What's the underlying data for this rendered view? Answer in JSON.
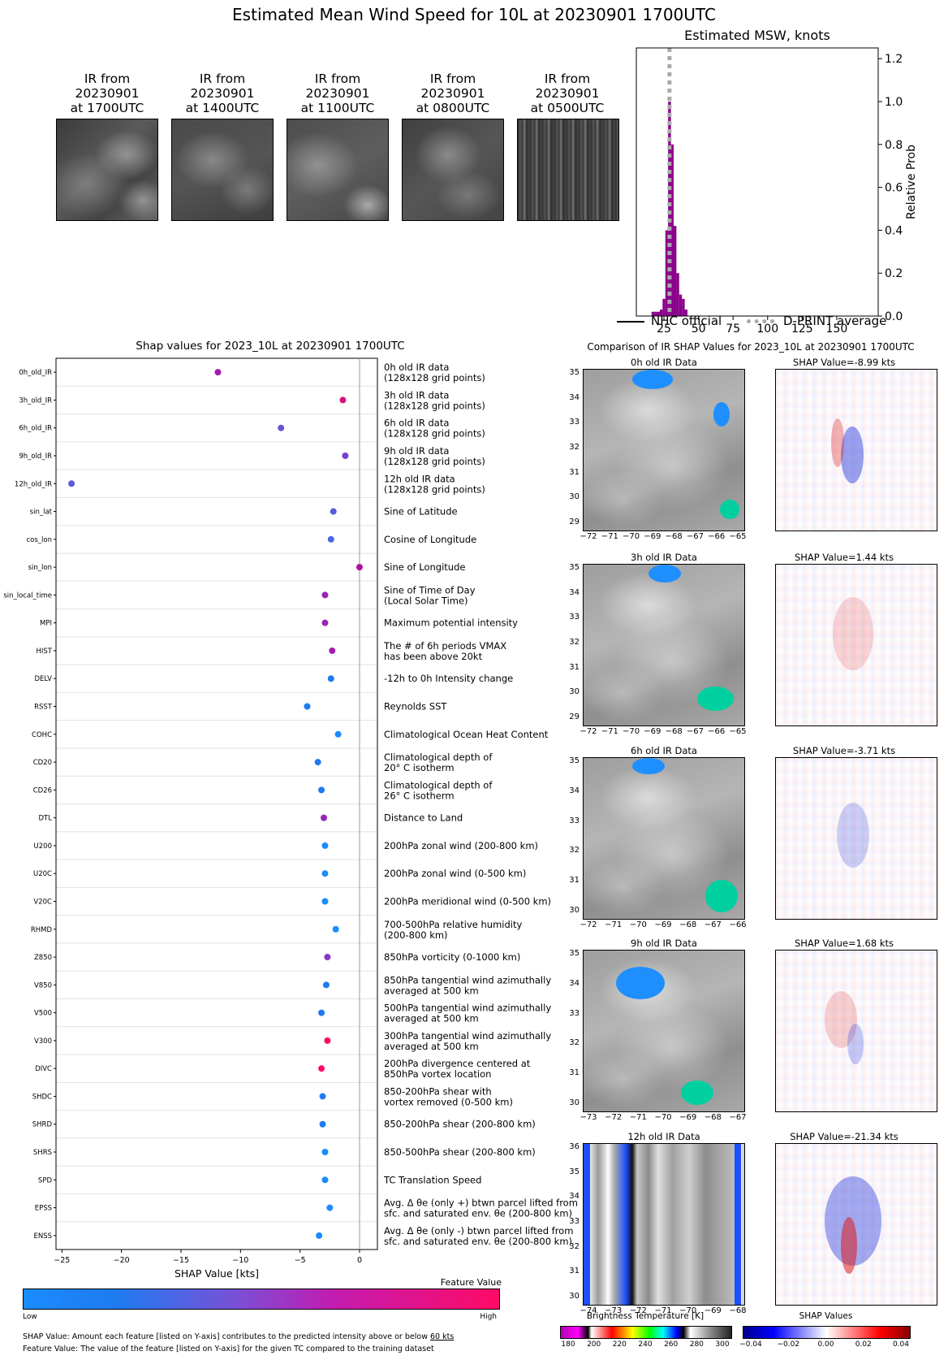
{
  "page": {
    "title": "Estimated Mean Wind Speed for 10L at 20230901 1700UTC"
  },
  "ir_thumbnails": [
    {
      "line1": "IR from",
      "line2": "20230901",
      "line3": "at 1700UTC"
    },
    {
      "line1": "IR from",
      "line2": "20230901",
      "line3": "at 1400UTC"
    },
    {
      "line1": "IR from",
      "line2": "20230901",
      "line3": "at 1100UTC"
    },
    {
      "line1": "IR from",
      "line2": "20230901",
      "line3": "at 0800UTC"
    },
    {
      "line1": "IR from",
      "line2": "20230901",
      "line3": "at 0500UTC"
    }
  ],
  "chart_data": [
    {
      "type": "bar",
      "title": "Estimated MSW, knots",
      "ylabel": "Relative Prob",
      "xlim": [
        5,
        180
      ],
      "ylim": [
        0,
        1.25
      ],
      "xticks": [
        25,
        50,
        75,
        100,
        125,
        150
      ],
      "yticks": [
        "0.0",
        "0.2",
        "0.4",
        "0.6",
        "0.8",
        "1.0",
        "1.2"
      ],
      "bins": [
        {
          "x": 17,
          "v": 0.02
        },
        {
          "x": 19,
          "v": 0.02
        },
        {
          "x": 21,
          "v": 0.02
        },
        {
          "x": 23,
          "v": 0.03
        },
        {
          "x": 25,
          "v": 0.08
        },
        {
          "x": 27,
          "v": 0.4
        },
        {
          "x": 29,
          "v": 1.0
        },
        {
          "x": 31,
          "v": 0.8
        },
        {
          "x": 33,
          "v": 0.42
        },
        {
          "x": 35,
          "v": 0.2
        },
        {
          "x": 37,
          "v": 0.1
        },
        {
          "x": 39,
          "v": 0.08
        },
        {
          "x": 41,
          "v": 0.03
        }
      ],
      "bin_width": 2,
      "bar_color": "#8b008b",
      "dprint_average": 29,
      "legend": [
        {
          "label": "NHC official",
          "style": "solid",
          "color": "#000000"
        },
        {
          "label": "D-PRINT average",
          "style": "dotted",
          "color": "#aaaaaa"
        }
      ]
    },
    {
      "type": "scatter",
      "title": "Shap values for 2023_10L at 20230901 1700UTC",
      "xlabel": "SHAP Value [kts]",
      "xlim": [
        -25.5,
        1.5
      ],
      "xticks": [
        -25,
        -20,
        -15,
        -10,
        -5,
        0
      ],
      "features": [
        {
          "name": "0h_old_IR",
          "shap": -11.9,
          "color": "#a21cae",
          "desc1": "0h old IR data",
          "desc2": "(128x128 grid points)"
        },
        {
          "name": "3h_old_IR",
          "shap": -1.4,
          "color": "#d4127e",
          "desc1": "3h old IR data",
          "desc2": "(128x128 grid points)"
        },
        {
          "name": "6h_old_IR",
          "shap": -6.6,
          "color": "#6a55d0",
          "desc1": "6h old IR data",
          "desc2": "(128x128 grid points)"
        },
        {
          "name": "9h_old_IR",
          "shap": -1.2,
          "color": "#7a3fd0",
          "desc1": "9h old IR data",
          "desc2": "(128x128 grid points)"
        },
        {
          "name": "12h_old_IR",
          "shap": -24.2,
          "color": "#5a5ad8",
          "desc1": "12h old IR data",
          "desc2": "(128x128 grid points)"
        },
        {
          "name": "sin_lat",
          "shap": -2.2,
          "color": "#5a5ad8",
          "desc1": "Sine of Latitude",
          "desc2": ""
        },
        {
          "name": "cos_lon",
          "shap": -2.4,
          "color": "#4a66e0",
          "desc1": "Cosine of Longitude",
          "desc2": ""
        },
        {
          "name": "sin_lon",
          "shap": 0.0,
          "color": "#b0109a",
          "desc1": "Sine of Longitude",
          "desc2": ""
        },
        {
          "name": "sin_local_time",
          "shap": -2.9,
          "color": "#9a24b8",
          "desc1": "Sine of Time of Day",
          "desc2": "(Local Solar Time)"
        },
        {
          "name": "MPI",
          "shap": -2.9,
          "color": "#9a24b8",
          "desc1": "Maximum potential intensity",
          "desc2": ""
        },
        {
          "name": "HIST",
          "shap": -2.3,
          "color": "#a21cae",
          "desc1": "The # of 6h periods VMAX",
          "desc2": "has been above 20kt"
        },
        {
          "name": "DELV",
          "shap": -2.4,
          "color": "#1f7af0",
          "desc1": "-12h to 0h Intensity change",
          "desc2": ""
        },
        {
          "name": "RSST",
          "shap": -4.4,
          "color": "#1f7af0",
          "desc1": "Reynolds SST",
          "desc2": ""
        },
        {
          "name": "COHC",
          "shap": -1.8,
          "color": "#1a8cff",
          "desc1": "Climatological Ocean Heat Content",
          "desc2": ""
        },
        {
          "name": "CD20",
          "shap": -3.5,
          "color": "#1f7af0",
          "desc1": "Climatological depth of",
          "desc2": "20° C isotherm"
        },
        {
          "name": "CD26",
          "shap": -3.2,
          "color": "#1f7af0",
          "desc1": "Climatological depth of",
          "desc2": "26° C isotherm"
        },
        {
          "name": "DTL",
          "shap": -3.0,
          "color": "#9a24b8",
          "desc1": "Distance to Land",
          "desc2": ""
        },
        {
          "name": "U200",
          "shap": -2.9,
          "color": "#1a8cff",
          "desc1": "200hPa zonal wind (200-800 km)",
          "desc2": ""
        },
        {
          "name": "U20C",
          "shap": -2.9,
          "color": "#1a8cff",
          "desc1": "200hPa zonal wind (0-500 km)",
          "desc2": ""
        },
        {
          "name": "V20C",
          "shap": -2.9,
          "color": "#1a8cff",
          "desc1": "200hPa meridional wind (0-500 km)",
          "desc2": ""
        },
        {
          "name": "RHMD",
          "shap": -2.0,
          "color": "#1a8cff",
          "desc1": "700-500hPa relative humidity",
          "desc2": "(200-800 km)"
        },
        {
          "name": "Z850",
          "shap": -2.7,
          "color": "#8a35c4",
          "desc1": "850hPa vorticity (0-1000 km)",
          "desc2": ""
        },
        {
          "name": "V850",
          "shap": -2.8,
          "color": "#1f7af0",
          "desc1": "850hPa tangential wind azimuthally",
          "desc2": "averaged at 500 km"
        },
        {
          "name": "V500",
          "shap": -3.2,
          "color": "#1f7af0",
          "desc1": "500hPa tangential wind azimuthally",
          "desc2": "averaged at 500 km"
        },
        {
          "name": "V300",
          "shap": -2.7,
          "color": "#ff0a66",
          "desc1": "300hPa tangential wind azimuthally",
          "desc2": "averaged at 500 km"
        },
        {
          "name": "DIVC",
          "shap": -3.2,
          "color": "#ff0a66",
          "desc1": "200hPa divergence centered at",
          "desc2": "850hPa vortex location"
        },
        {
          "name": "SHDC",
          "shap": -3.1,
          "color": "#1f7af0",
          "desc1": "850-200hPa shear with",
          "desc2": "vortex removed (0-500 km)"
        },
        {
          "name": "SHRD",
          "shap": -3.1,
          "color": "#1f7af0",
          "desc1": "850-200hPa shear (200-800 km)",
          "desc2": ""
        },
        {
          "name": "SHRS",
          "shap": -2.9,
          "color": "#1a8cff",
          "desc1": "850-500hPa shear (200-800 km)",
          "desc2": ""
        },
        {
          "name": "SPD",
          "shap": -2.9,
          "color": "#1a8cff",
          "desc1": "TC Translation Speed",
          "desc2": ""
        },
        {
          "name": "EPSS",
          "shap": -2.5,
          "color": "#1a8cff",
          "desc1": "Avg. Δ θe (only +) btwn parcel lifted from",
          "desc2": "sfc. and saturated env. θe (200-800 km)"
        },
        {
          "name": "ENSS",
          "shap": -3.4,
          "color": "#1a8cff",
          "desc1": "Avg. Δ θe (only -) btwn parcel lifted from",
          "desc2": "sfc. and saturated env. θe (200-800 km)"
        }
      ]
    }
  ],
  "comparison": {
    "title": "Comparison of IR SHAP Values for 2023_10L at 20230901 1700UTC",
    "rows": [
      {
        "ir_title": "0h old IR Data",
        "shap_title": "SHAP Value=-8.99 kts",
        "lats": [
          "35",
          "34",
          "33",
          "32",
          "31",
          "30",
          "29"
        ],
        "lons": [
          "−72",
          "−71",
          "−70",
          "−69",
          "−68",
          "−67",
          "−66",
          "−65"
        ]
      },
      {
        "ir_title": "3h old IR Data",
        "shap_title": "SHAP Value=1.44 kts",
        "lats": [
          "35",
          "34",
          "33",
          "32",
          "31",
          "30",
          "29"
        ],
        "lons": [
          "−72",
          "−71",
          "−70",
          "−69",
          "−68",
          "−67",
          "−66",
          "−65"
        ]
      },
      {
        "ir_title": "6h old IR Data",
        "shap_title": "SHAP Value=-3.71 kts",
        "lats": [
          "35",
          "34",
          "33",
          "32",
          "31",
          "30"
        ],
        "lons": [
          "−72",
          "−71",
          "−70",
          "−69",
          "−68",
          "−67",
          "−66"
        ]
      },
      {
        "ir_title": "9h old IR Data",
        "shap_title": "SHAP Value=1.68 kts",
        "lats": [
          "35",
          "34",
          "33",
          "32",
          "31",
          "30"
        ],
        "lons": [
          "−73",
          "−72",
          "−71",
          "−70",
          "−69",
          "−68",
          "−67"
        ]
      },
      {
        "ir_title": "12h old IR Data",
        "shap_title": "SHAP Value=-21.34 kts",
        "lats": [
          "36",
          "35",
          "34",
          "33",
          "32",
          "31",
          "30"
        ],
        "lons": [
          "−74",
          "−73",
          "−72",
          "−71",
          "−70",
          "−69",
          "−68"
        ]
      }
    ],
    "ir_colorbar": {
      "label": "Brightness Temperature [K]",
      "ticks": [
        "180",
        "200",
        "220",
        "240",
        "260",
        "280",
        "300"
      ]
    },
    "shap_colorbar": {
      "label": "SHAP Values",
      "ticks": [
        "−0.04",
        "−0.02",
        "0.00",
        "0.02",
        "0.04"
      ]
    }
  },
  "feature_colorbar": {
    "title": "Feature Value",
    "low": "Low",
    "high": "High"
  },
  "footnotes": {
    "line1_prefix": "SHAP Value: Amount each feature [listed on Y-axis] contributes to the predicted intensity above or below ",
    "line1_link": "60 kts",
    "line2": "Feature Value: The value of the feature [listed on Y-axis] for the given TC compared to the training dataset"
  }
}
